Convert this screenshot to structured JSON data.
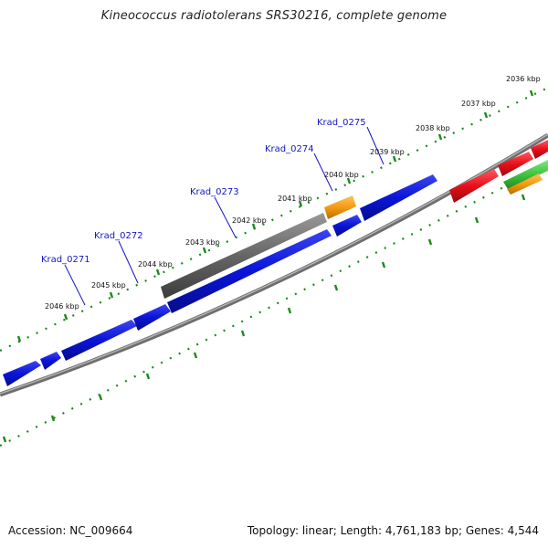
{
  "title": "Kineococcus radiotolerans SRS30216, complete genome",
  "accession_text": "Accession: NC_009664",
  "summary_text": "Topology: linear; Length: 4,761,183 bp; Genes: 4,544",
  "ruler_labels": [
    "2036 kbp",
    "2037 kbp",
    "2038 kbp",
    "2039 kbp",
    "2040 kbp",
    "2041 kbp",
    "2042 kbp",
    "2043 kbp",
    "2044 kbp",
    "2045 kbp",
    "2046 kbp"
  ],
  "gene_labels": [
    "Krad_0271",
    "Krad_0272",
    "Krad_0273",
    "Krad_0274",
    "Krad_0275"
  ],
  "colors": {
    "forward_cds": "#0a14d8",
    "pseudo": "#666666",
    "rna": "#f39c12",
    "red_feature": "#e8101a",
    "green_feature": "#3ec43e",
    "ruler": "#1a8a1a",
    "backbone": "#8c8c8c",
    "label_text": "#1515c8"
  }
}
